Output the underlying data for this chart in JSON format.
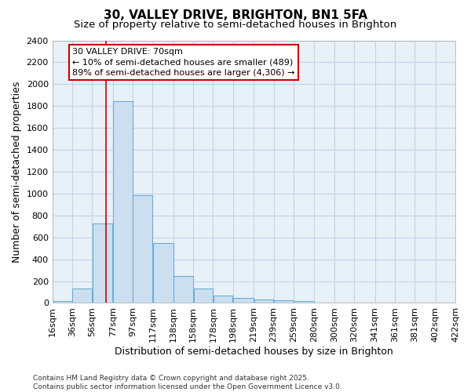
{
  "title": "30, VALLEY DRIVE, BRIGHTON, BN1 5FA",
  "subtitle": "Size of property relative to semi-detached houses in Brighton",
  "xlabel": "Distribution of semi-detached houses by size in Brighton",
  "ylabel": "Number of semi-detached properties",
  "footer": "Contains HM Land Registry data © Crown copyright and database right 2025.\nContains public sector information licensed under the Open Government Licence v3.0.",
  "bar_left_edges": [
    16,
    36,
    56,
    77,
    97,
    117,
    138,
    158,
    178,
    198,
    219,
    239,
    259,
    280,
    300,
    320,
    341,
    361,
    381,
    402
  ],
  "bar_widths": [
    20,
    20,
    21,
    20,
    20,
    21,
    20,
    20,
    20,
    21,
    20,
    20,
    21,
    20,
    20,
    21,
    20,
    20,
    21,
    20
  ],
  "bar_heights": [
    15,
    130,
    730,
    1845,
    985,
    550,
    250,
    130,
    70,
    45,
    30,
    25,
    18,
    0,
    0,
    0,
    0,
    0,
    0,
    0
  ],
  "x_tick_labels": [
    "16sqm",
    "36sqm",
    "56sqm",
    "77sqm",
    "97sqm",
    "117sqm",
    "138sqm",
    "158sqm",
    "178sqm",
    "198sqm",
    "219sqm",
    "239sqm",
    "259sqm",
    "280sqm",
    "300sqm",
    "320sqm",
    "341sqm",
    "361sqm",
    "381sqm",
    "402sqm",
    "422sqm"
  ],
  "x_tick_positions": [
    16,
    36,
    56,
    77,
    97,
    117,
    138,
    158,
    178,
    198,
    219,
    239,
    259,
    280,
    300,
    320,
    341,
    361,
    381,
    402,
    422
  ],
  "ylim": [
    0,
    2400
  ],
  "yticks": [
    0,
    200,
    400,
    600,
    800,
    1000,
    1200,
    1400,
    1600,
    1800,
    2000,
    2200,
    2400
  ],
  "property_size": 70,
  "bar_color": "#ccdff0",
  "bar_edge_color": "#6aaed6",
  "red_line_color": "#cc0000",
  "annotation_line1": "30 VALLEY DRIVE: 70sqm",
  "annotation_line2": "← 10% of semi-detached houses are smaller (489)",
  "annotation_line3": "89% of semi-detached houses are larger (4,306) →",
  "annotation_box_color": "#ffffff",
  "annotation_box_edge": "#cc0000",
  "grid_color": "#c0d4e8",
  "background_color": "#e8f0f8",
  "title_fontsize": 11,
  "subtitle_fontsize": 9.5,
  "axis_label_fontsize": 9,
  "tick_fontsize": 8,
  "footer_fontsize": 6.5,
  "annotation_fontsize": 8
}
